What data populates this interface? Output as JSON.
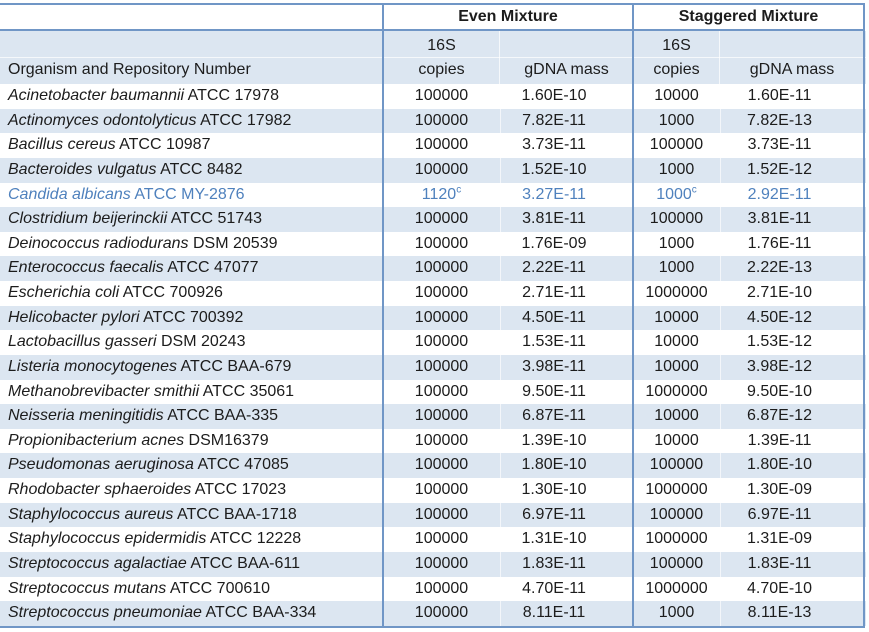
{
  "header": {
    "group_even": "Even Mixture",
    "group_staggered": "Staggered Mixture",
    "organism": "Organism and Repository Number",
    "s16": "16S",
    "copies": "copies",
    "gdna": "gDNA mass"
  },
  "colors": {
    "border_blue": "#7096c6",
    "band_fill": "#dce6f1",
    "text": "#1c1c1c",
    "highlight_blue": "#4f81bd"
  },
  "footnote_marker": "c",
  "chart_data": {
    "type": "table",
    "title": "",
    "column_groups": [
      "",
      "Even Mixture",
      "Even Mixture",
      "Staggered Mixture",
      "Staggered Mixture"
    ],
    "columns": [
      "Organism and Repository Number",
      "16S copies",
      "gDNA mass",
      "16S copies",
      "gDNA mass"
    ],
    "rows": [
      {
        "organism": "Acinetobacter baumannii",
        "repository": "ATCC 17978",
        "even_copies": "100000",
        "even_gdna": "1.60E-10",
        "stag_copies": "10000",
        "stag_gdna": "1.60E-11"
      },
      {
        "organism": "Actinomyces odontolyticus",
        "repository": "ATCC 17982",
        "even_copies": "100000",
        "even_gdna": "7.82E-11",
        "stag_copies": "1000",
        "stag_gdna": "7.82E-13"
      },
      {
        "organism": "Bacillus cereus",
        "repository": "ATCC 10987",
        "even_copies": "100000",
        "even_gdna": "3.73E-11",
        "stag_copies": "100000",
        "stag_gdna": "3.73E-11"
      },
      {
        "organism": "Bacteroides vulgatus",
        "repository": "ATCC 8482",
        "even_copies": "100000",
        "even_gdna": "1.52E-10",
        "stag_copies": "1000",
        "stag_gdna": "1.52E-12"
      },
      {
        "organism": "Candida albicans",
        "repository": "ATCC MY-2876",
        "highlight": true,
        "even_copies": "1120",
        "even_copies_sup": "c",
        "even_gdna": "3.27E-11",
        "stag_copies": "1000",
        "stag_copies_sup": "c",
        "stag_gdna": "2.92E-11"
      },
      {
        "organism": "Clostridium beijerinckii",
        "repository": "ATCC 51743",
        "even_copies": "100000",
        "even_gdna": "3.81E-11",
        "stag_copies": "100000",
        "stag_gdna": "3.81E-11"
      },
      {
        "organism": "Deinococcus radiodurans",
        "repository": "DSM 20539",
        "even_copies": "100000",
        "even_gdna": "1.76E-09",
        "stag_copies": "1000",
        "stag_gdna": "1.76E-11"
      },
      {
        "organism": "Enterococcus faecalis",
        "repository": "ATCC 47077",
        "even_copies": "100000",
        "even_gdna": "2.22E-11",
        "stag_copies": "1000",
        "stag_gdna": "2.22E-13"
      },
      {
        "organism": "Escherichia coli",
        "repository": "ATCC 700926",
        "even_copies": "100000",
        "even_gdna": "2.71E-11",
        "stag_copies": "1000000",
        "stag_gdna": "2.71E-10"
      },
      {
        "organism": "Helicobacter pylori",
        "repository": "ATCC 700392",
        "even_copies": "100000",
        "even_gdna": "4.50E-11",
        "stag_copies": "10000",
        "stag_gdna": "4.50E-12"
      },
      {
        "organism": "Lactobacillus gasseri",
        "repository": "DSM 20243",
        "even_copies": "100000",
        "even_gdna": "1.53E-11",
        "stag_copies": "10000",
        "stag_gdna": "1.53E-12"
      },
      {
        "organism": "Listeria monocytogenes",
        "repository": "ATCC BAA-679",
        "even_copies": "100000",
        "even_gdna": "3.98E-11",
        "stag_copies": "10000",
        "stag_gdna": "3.98E-12"
      },
      {
        "organism": "Methanobrevibacter smithii",
        "repository": "ATCC 35061",
        "even_copies": "100000",
        "even_gdna": "9.50E-11",
        "stag_copies": "1000000",
        "stag_gdna": "9.50E-10"
      },
      {
        "organism": "Neisseria meningitidis",
        "repository": "ATCC BAA-335",
        "even_copies": "100000",
        "even_gdna": "6.87E-11",
        "stag_copies": "10000",
        "stag_gdna": "6.87E-12"
      },
      {
        "organism": "Propionibacterium acnes",
        "repository": "DSM16379",
        "even_copies": "100000",
        "even_gdna": "1.39E-10",
        "stag_copies": "10000",
        "stag_gdna": "1.39E-11"
      },
      {
        "organism": "Pseudomonas aeruginosa",
        "repository": "ATCC 47085",
        "even_copies": "100000",
        "even_gdna": "1.80E-10",
        "stag_copies": "100000",
        "stag_gdna": "1.80E-10"
      },
      {
        "organism": "Rhodobacter sphaeroides",
        "repository": "ATCC 17023",
        "even_copies": "100000",
        "even_gdna": "1.30E-10",
        "stag_copies": "1000000",
        "stag_gdna": "1.30E-09"
      },
      {
        "organism": "Staphylococcus aureus",
        "repository": "ATCC BAA-1718",
        "even_copies": "100000",
        "even_gdna": "6.97E-11",
        "stag_copies": "100000",
        "stag_gdna": "6.97E-11"
      },
      {
        "organism": "Staphylococcus epidermidis",
        "repository": "ATCC 12228",
        "even_copies": "100000",
        "even_gdna": "1.31E-10",
        "stag_copies": "1000000",
        "stag_gdna": "1.31E-09"
      },
      {
        "organism": "Streptococcus agalactiae",
        "repository": "ATCC BAA-611",
        "even_copies": "100000",
        "even_gdna": "1.83E-11",
        "stag_copies": "100000",
        "stag_gdna": "1.83E-11"
      },
      {
        "organism": "Streptococcus mutans",
        "repository": "ATCC 700610",
        "even_copies": "100000",
        "even_gdna": "4.70E-11",
        "stag_copies": "1000000",
        "stag_gdna": "4.70E-10"
      },
      {
        "organism": "Streptococcus pneumoniae",
        "repository": "ATCC BAA-334",
        "even_copies": "100000",
        "even_gdna": "8.11E-11",
        "stag_copies": "1000",
        "stag_gdna": "8.11E-13"
      }
    ]
  }
}
